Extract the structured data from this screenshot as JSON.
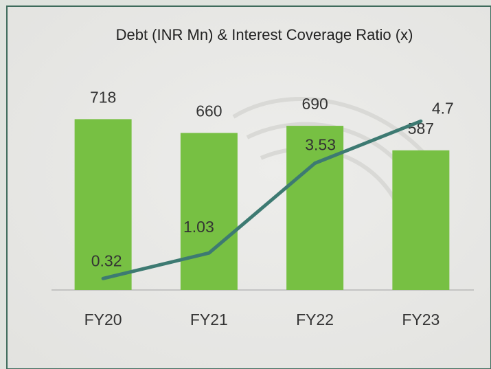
{
  "chart_data": {
    "type": "bar",
    "title": "Debt (INR Mn) & Interest Coverage Ratio (x)",
    "categories": [
      "FY20",
      "FY21",
      "FY22",
      "FY23"
    ],
    "series": [
      {
        "type": "bar",
        "color": "#77c043",
        "values": [
          718,
          660,
          690,
          587
        ]
      },
      {
        "type": "line",
        "axis": "y2",
        "color": "#3d7a72",
        "values": [
          0.32,
          1.03,
          3.53,
          4.7
        ]
      }
    ],
    "ylim": [
      0,
      800
    ],
    "y2lim": [
      0,
      5.3
    ],
    "grid": false
  }
}
